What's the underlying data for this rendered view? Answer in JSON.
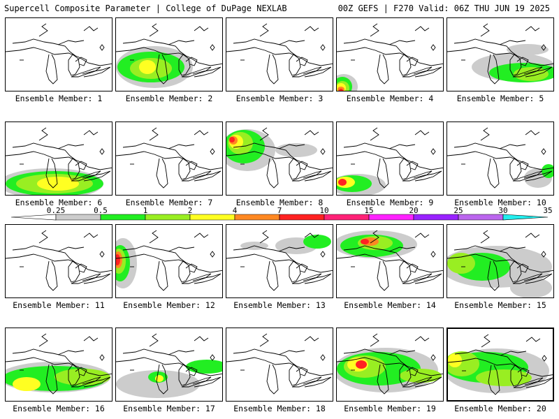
{
  "header": {
    "title": "Supercell Composite Parameter | College of DuPage NEXLAB",
    "run": "00Z GEFS | F270 Valid: 06Z THU JUN 19 2025"
  },
  "legend": {
    "ticks": [
      "0.25",
      "0.5",
      "1",
      "2",
      "4",
      "7",
      "10",
      "15",
      "20",
      "25",
      "30",
      "35"
    ],
    "colors": [
      "#ffffff",
      "#cccccc",
      "#22ee22",
      "#99ee22",
      "#ffff22",
      "#ff8822",
      "#ff2222",
      "#ff2277",
      "#ff22ff",
      "#9922ff",
      "#bb66ee",
      "#22eeee"
    ]
  },
  "fill_colors": {
    "gray": "#cccccc",
    "green": "#22ee22",
    "lime": "#99ee22",
    "yellow": "#ffff22",
    "orange": "#ff8822",
    "red": "#ff2222"
  },
  "members": [
    {
      "label": "Ensemble Member: 1"
    },
    {
      "label": "Ensemble Member: 2"
    },
    {
      "label": "Ensemble Member: 3"
    },
    {
      "label": "Ensemble Member: 4"
    },
    {
      "label": "Ensemble Member: 5"
    },
    {
      "label": "Ensemble Member: 6"
    },
    {
      "label": "Ensemble Member: 7"
    },
    {
      "label": "Ensemble Member: 8"
    },
    {
      "label": "Ensemble Member: 9"
    },
    {
      "label": "Ensemble Member: 10"
    },
    {
      "label": "Ensemble Member: 11"
    },
    {
      "label": "Ensemble Member: 12"
    },
    {
      "label": "Ensemble Member: 13"
    },
    {
      "label": "Ensemble Member: 14"
    },
    {
      "label": "Ensemble Member: 15"
    },
    {
      "label": "Ensemble Member: 16"
    },
    {
      "label": "Ensemble Member: 17"
    },
    {
      "label": "Ensemble Member: 18"
    },
    {
      "label": "Ensemble Member: 19"
    },
    {
      "label": "Ensemble Member: 20"
    }
  ]
}
